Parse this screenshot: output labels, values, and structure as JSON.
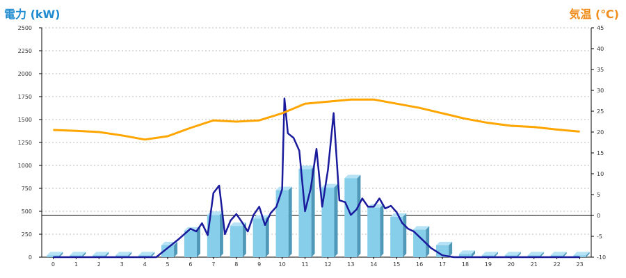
{
  "chart_data": {
    "type": "bar",
    "ylabel_left": "電力 (kW)",
    "ylabel_right": "気温 (℃)",
    "categories": [
      "0",
      "1",
      "2",
      "3",
      "4",
      "5",
      "6",
      "7",
      "8",
      "9",
      "10",
      "11",
      "12",
      "13",
      "14",
      "15",
      "16",
      "17",
      "18",
      "19",
      "20",
      "21",
      "22",
      "23"
    ],
    "y_left": {
      "min": 0,
      "max": 2500,
      "ticks": [
        0,
        250,
        500,
        750,
        1000,
        1250,
        1500,
        1750,
        2000,
        2250,
        2500
      ]
    },
    "y_right": {
      "min": -10,
      "max": 45,
      "ticks": [
        -10,
        -5,
        0,
        5,
        10,
        15,
        20,
        25,
        30,
        35,
        40,
        45
      ]
    },
    "grid": true,
    "series": [
      {
        "type": "bar",
        "axis": "left",
        "color": "#87ceeb",
        "values": [
          20,
          20,
          20,
          20,
          20,
          130,
          290,
          460,
          340,
          420,
          730,
          960,
          760,
          860,
          540,
          440,
          300,
          130,
          35,
          20,
          20,
          20,
          20,
          20
        ]
      },
      {
        "type": "line",
        "axis": "left",
        "color": "#1a1a9c",
        "x": [
          0,
          0.5,
          1,
          1.5,
          2,
          2.5,
          3,
          3.5,
          4,
          4.5,
          5,
          5.5,
          6,
          6.25,
          6.5,
          6.75,
          7,
          7.25,
          7.5,
          7.75,
          8,
          8.25,
          8.5,
          8.75,
          9,
          9.25,
          9.5,
          9.75,
          10,
          10.1,
          10.25,
          10.5,
          10.75,
          11,
          11.25,
          11.5,
          11.75,
          12,
          12.25,
          12.5,
          12.75,
          13,
          13.25,
          13.5,
          13.75,
          14,
          14.25,
          14.5,
          14.75,
          15,
          15.25,
          15.5,
          15.75,
          16,
          16.5,
          17,
          17.5,
          18,
          18.5,
          19,
          19.5,
          20,
          20.5,
          21,
          21.5,
          22,
          22.5,
          23
        ],
        "values": [
          0,
          0,
          0,
          0,
          0,
          0,
          0,
          0,
          0,
          0,
          100,
          200,
          310,
          280,
          370,
          240,
          700,
          780,
          250,
          400,
          470,
          380,
          280,
          460,
          550,
          350,
          480,
          550,
          740,
          1730,
          1350,
          1300,
          1160,
          500,
          750,
          1180,
          550,
          950,
          1570,
          620,
          600,
          460,
          520,
          640,
          550,
          550,
          640,
          530,
          560,
          490,
          370,
          310,
          280,
          220,
          100,
          20,
          0,
          0,
          0,
          0,
          0,
          0,
          0,
          0,
          0,
          0,
          0,
          0
        ]
      },
      {
        "type": "line",
        "axis": "right",
        "color": "#ffa500",
        "x": [
          0,
          1,
          2,
          3,
          4,
          5,
          6,
          7,
          8,
          9,
          10,
          11,
          12,
          13,
          14,
          15,
          16,
          17,
          18,
          19,
          20,
          21,
          22,
          23
        ],
        "values": [
          20.5,
          20.3,
          20.0,
          19.2,
          18.2,
          19.0,
          21.0,
          22.8,
          22.5,
          22.8,
          24.5,
          26.8,
          27.3,
          27.8,
          27.8,
          26.8,
          25.8,
          24.5,
          23.2,
          22.2,
          21.5,
          21.2,
          20.6,
          20.1
        ]
      }
    ]
  }
}
